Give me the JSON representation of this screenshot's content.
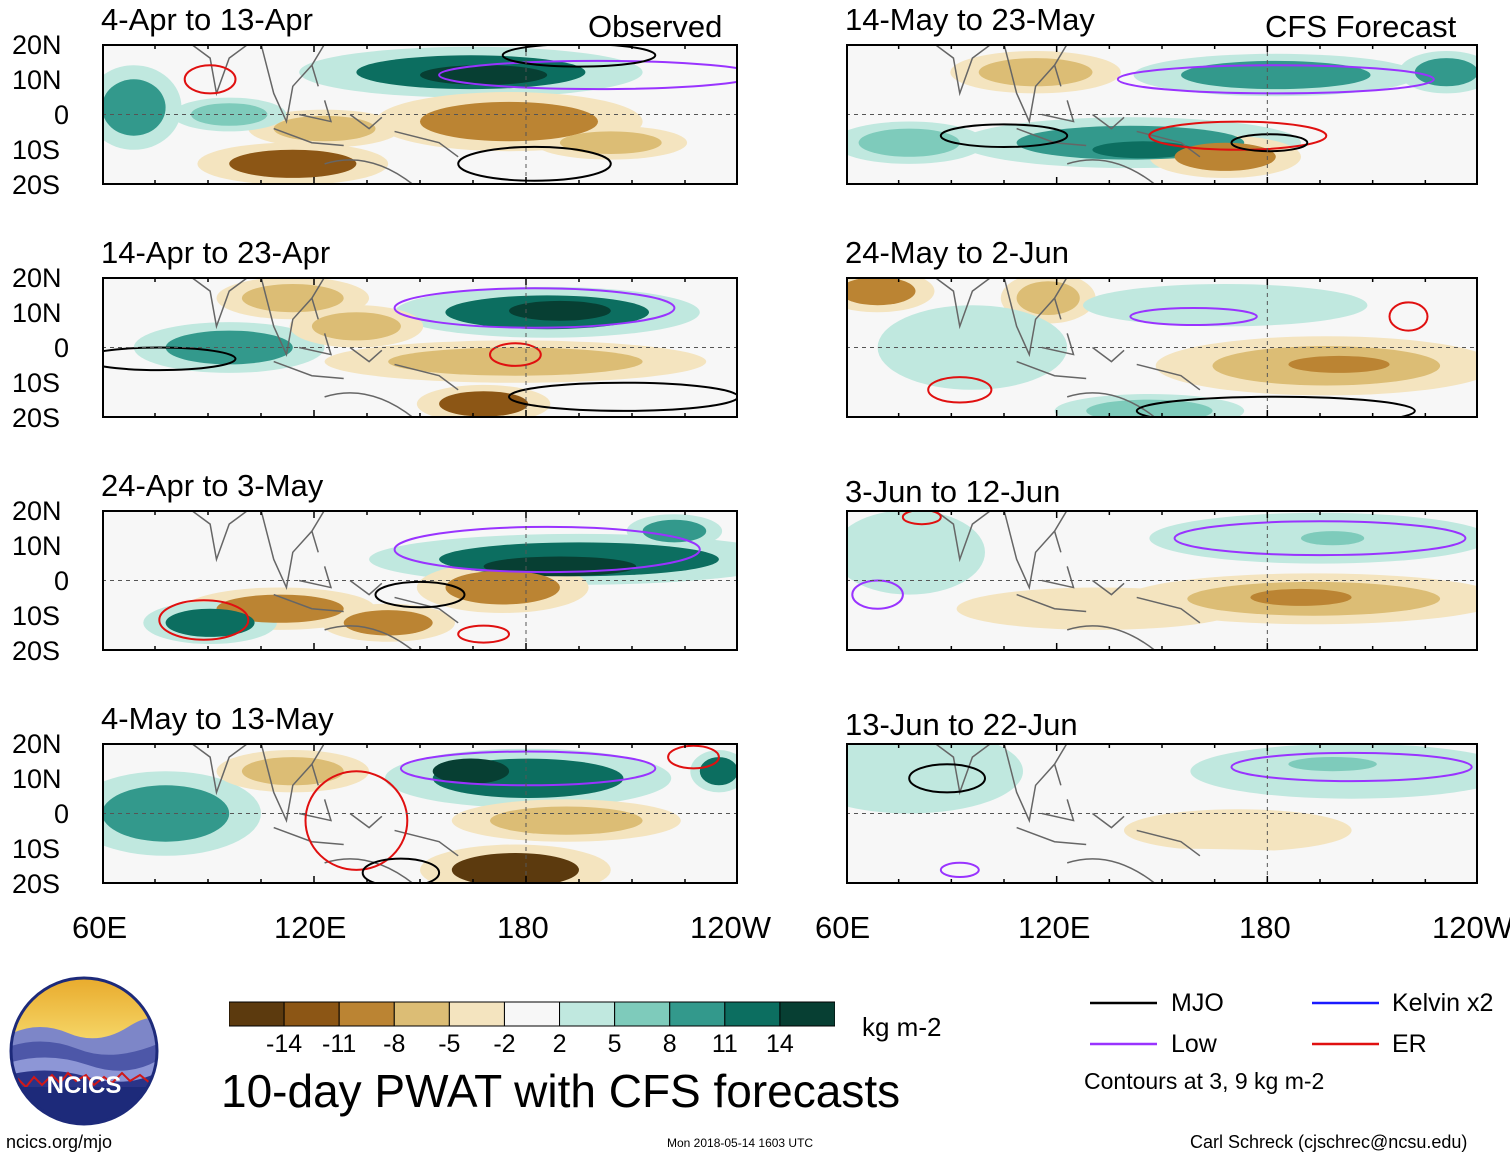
{
  "header": {
    "observed_label": "Observed",
    "forecast_label": "CFS Forecast"
  },
  "panels": [
    {
      "title": "4-Apr to 13-Apr"
    },
    {
      "title": "14-Apr to 23-Apr"
    },
    {
      "title": "24-Apr to 3-May"
    },
    {
      "title": "4-May to 13-May"
    },
    {
      "title": "14-May to 23-May"
    },
    {
      "title": "24-May to 2-Jun"
    },
    {
      "title": "3-Jun to 12-Jun"
    },
    {
      "title": "13-Jun to 22-Jun"
    }
  ],
  "axes": {
    "lat_labels": [
      "20N",
      "10N",
      "0",
      "10S",
      "20S"
    ],
    "lon_labels": [
      "60E",
      "120E",
      "180",
      "120W"
    ]
  },
  "colorbar": {
    "ticks": [
      "-14",
      "-11",
      "-8",
      "-5",
      "-2",
      "2",
      "5",
      "8",
      "11",
      "14"
    ],
    "colors": [
      "#5c3a0e",
      "#8c5615",
      "#bb8433",
      "#dcbd75",
      "#f4e4bf",
      "#f7f7f7",
      "#c0e8df",
      "#7ecbbb",
      "#33998c",
      "#0c6e60",
      "#073f33"
    ],
    "units": "kg m-2"
  },
  "title": "10-day PWAT with CFS forecasts",
  "legend": {
    "items": [
      {
        "label": "MJO",
        "color": "#000000"
      },
      {
        "label": "Kelvin x2",
        "color": "#1a1aff"
      },
      {
        "label": "Low",
        "color": "#9933ff"
      },
      {
        "label": "ER",
        "color": "#e01010"
      }
    ],
    "note": "Contours at 3, 9 kg m-2"
  },
  "logo": {
    "text": "NCICS"
  },
  "footer": {
    "url": "ncics.org/mjo",
    "timestamp": "Mon 2018-05-14 1603 UTC",
    "credit": "Carl Schreck (cjschrec@ncsu.edu)"
  }
}
